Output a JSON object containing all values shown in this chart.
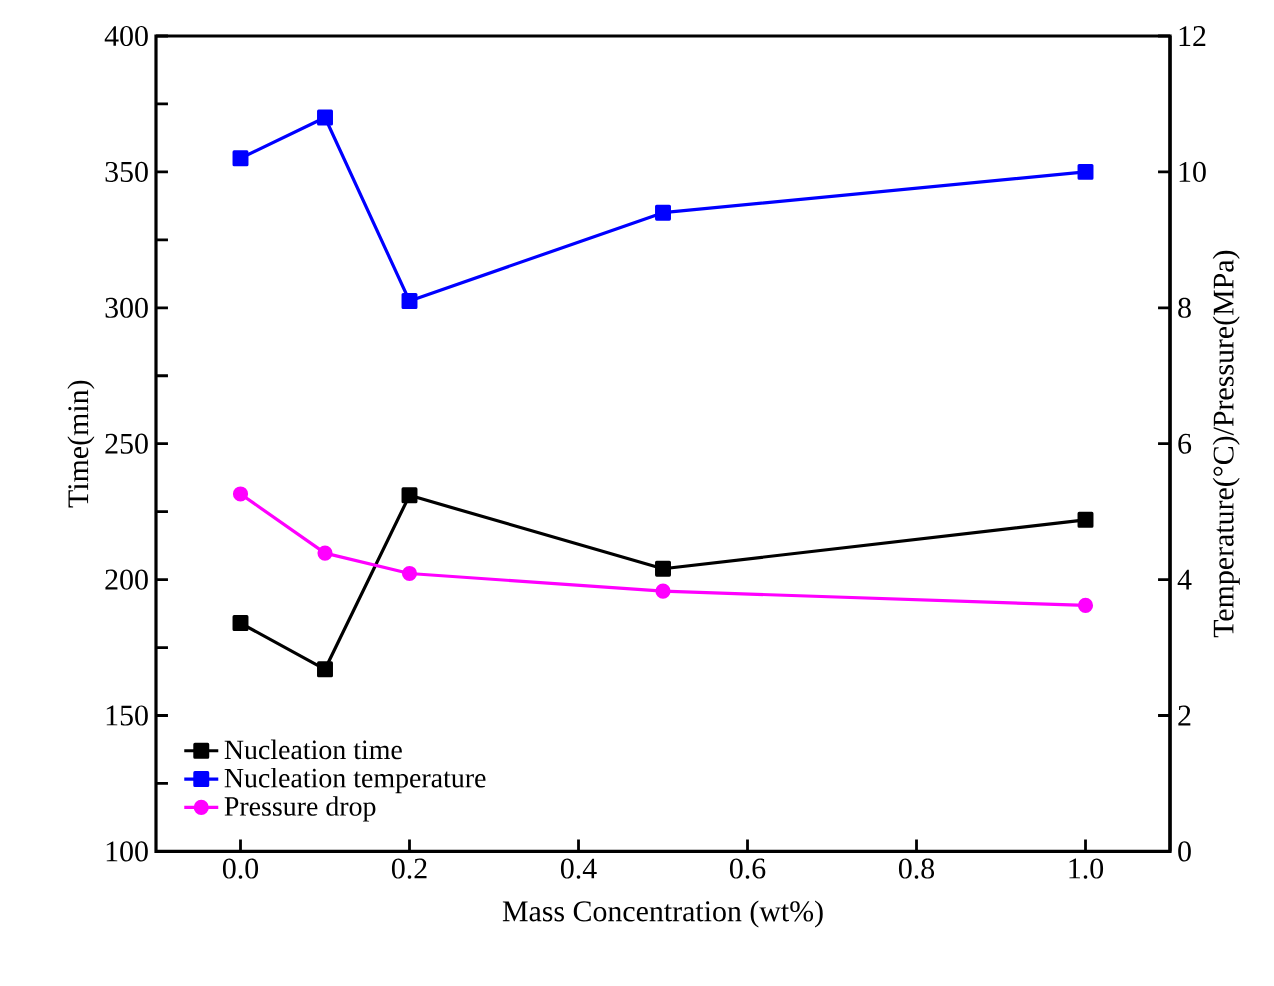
{
  "chart_data": {
    "type": "line",
    "xlabel": "Mass Concentration (wt%)",
    "ylabel": "Time(min)",
    "y2label": "Temperature(°C)/Pressure(MPa)",
    "x": [
      0.0,
      0.1,
      0.2,
      0.5,
      1.0
    ],
    "xlim": [
      -0.1,
      1.1
    ],
    "xticks": [
      {
        "value": 0,
        "label": "0.0"
      },
      0.2,
      0.4,
      0.6,
      0.8,
      {
        "value": 1,
        "label": "1.0"
      }
    ],
    "ylim": [
      100,
      400
    ],
    "yticks": [
      100,
      {
        "value": 125,
        "label": null
      },
      150,
      {
        "value": 175,
        "label": null
      },
      200,
      {
        "value": 225,
        "label": null
      },
      250,
      {
        "value": 275,
        "label": null
      },
      300,
      {
        "value": 325,
        "label": null
      },
      350,
      {
        "value": 375,
        "label": null
      },
      400
    ],
    "y2lim": [
      0,
      12
    ],
    "y2ticks": [
      0,
      2,
      4,
      6,
      8,
      10,
      12
    ],
    "legend": "bottom left",
    "grid": false,
    "series": [
      {
        "name": "Nucleation time",
        "color": "#000000",
        "marker": "square",
        "values": [
          184,
          167,
          231,
          204,
          222
        ]
      },
      {
        "name": "Nucleation temperature",
        "color": "#0000ff",
        "marker": "square",
        "axis": "y2",
        "values": [
          10.2,
          10.8,
          8.1,
          9.4,
          10.0
        ]
      },
      {
        "name": "Pressure drop",
        "color": "#ff00ff",
        "marker": "circle",
        "axis": "y2",
        "values": [
          5.26,
          4.39,
          4.09,
          3.83,
          3.62
        ]
      }
    ]
  }
}
